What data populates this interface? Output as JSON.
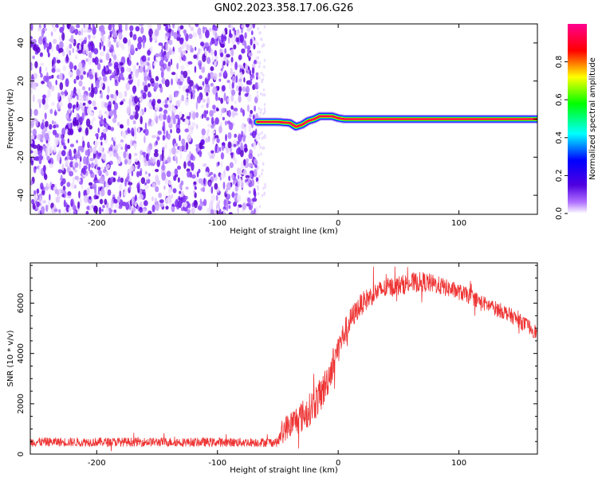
{
  "title": "GN02.2023.358.17.06.G26",
  "chart_data": [
    {
      "type": "heatmap",
      "xlabel": "Height of straight line (km)",
      "ylabel": "Frequency (Hz)",
      "xlim": [
        -255,
        165
      ],
      "ylim": [
        -50,
        50
      ],
      "xticks": [
        -200,
        -100,
        0,
        100
      ],
      "yticks": [
        -40,
        -20,
        0,
        20,
        40
      ],
      "noise_region_x": [
        -255,
        -67
      ],
      "colorbar": {
        "label": "Normalized spectral amplitude",
        "ticks": [
          0.0,
          0.2,
          0.4,
          0.6,
          0.8
        ],
        "range": [
          0,
          1
        ],
        "colormap": [
          "#ffffff",
          "#6a00e8",
          "#0000ff",
          "#00ffff",
          "#00ff00",
          "#ffff00",
          "#ff0000",
          "#ff0080"
        ]
      },
      "peak_track": {
        "x": [
          -67,
          -60,
          -50,
          -40,
          -35,
          -30,
          -25,
          -20,
          -15,
          -10,
          -5,
          0,
          5,
          20,
          60,
          100,
          165
        ],
        "y": [
          -1.5,
          -1.5,
          -1.5,
          -2,
          -4,
          -3,
          -1,
          0,
          1.5,
          1.5,
          1.5,
          0.5,
          0,
          0,
          0,
          0,
          0
        ]
      }
    },
    {
      "type": "line",
      "xlabel": "Height of straight line (km)",
      "ylabel": "SNR (10 * v/v)",
      "xlim": [
        -255,
        165
      ],
      "ylim": [
        0,
        7600
      ],
      "xticks": [
        -200,
        -100,
        0,
        100
      ],
      "yticks": [
        0,
        2000,
        4000,
        6000
      ],
      "color": "#ee3333",
      "series": [
        {
          "x": [
            -255,
            -200,
            -150,
            -100,
            -50,
            -45,
            -40,
            -35,
            -30,
            -25,
            -20,
            -15,
            -10,
            -5,
            0,
            5,
            10,
            15,
            20,
            30,
            40,
            50,
            60,
            70,
            80,
            90,
            100,
            110,
            120,
            130,
            140,
            150,
            160,
            165
          ],
          "values": [
            480,
            480,
            480,
            470,
            470,
            1000,
            1150,
            1350,
            1500,
            1700,
            2000,
            2300,
            2800,
            3500,
            4200,
            4800,
            5300,
            5700,
            6000,
            6400,
            6600,
            6700,
            6800,
            6850,
            6750,
            6600,
            6450,
            6250,
            6000,
            5800,
            5600,
            5300,
            5000,
            4800
          ],
          "noise_amplitude": [
            180,
            180,
            180,
            180,
            180,
            500,
            550,
            600,
            650,
            650,
            700,
            700,
            700,
            650,
            600,
            550,
            500,
            450,
            450,
            400,
            400,
            400,
            400,
            400,
            380,
            350,
            330,
            320,
            300,
            300,
            300,
            300,
            300,
            300
          ]
        }
      ]
    }
  ]
}
